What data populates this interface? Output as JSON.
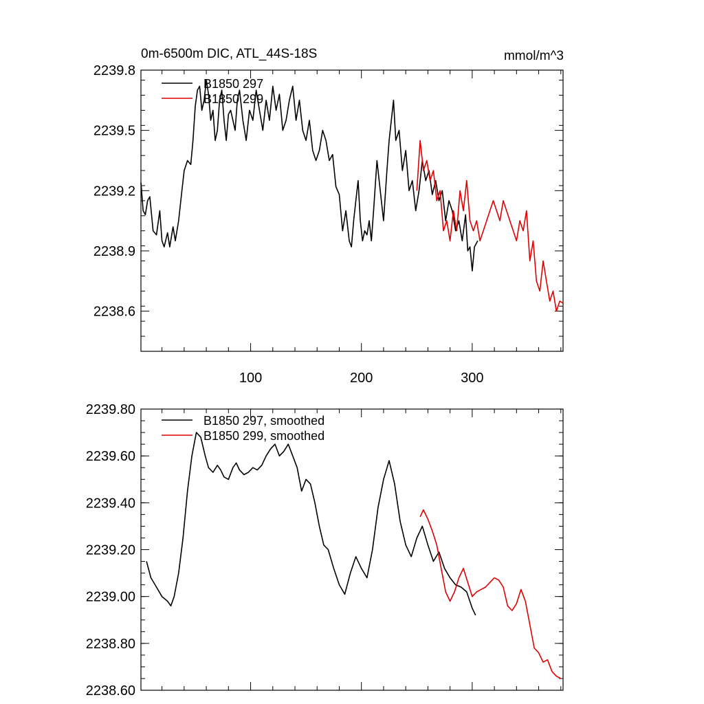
{
  "chart_data": [
    {
      "type": "line",
      "title": "0m-6500m DIC, ATL_44S-18S",
      "units": "mmol/m^3",
      "xlabel": "",
      "ylabel": "",
      "xlim": [
        1,
        382
      ],
      "ylim": [
        2238.4,
        2239.8
      ],
      "xticks": [
        100,
        200,
        300
      ],
      "xtick_labels": [
        "100",
        "200",
        "300"
      ],
      "yticks": [
        2238.6,
        2238.9,
        2239.2,
        2239.5,
        2239.8
      ],
      "ytick_labels": [
        "2238.6",
        "2238.9",
        "2239.2",
        "2239.5",
        "2239.8"
      ],
      "legend": "top-left",
      "grid": false,
      "series": [
        {
          "name": "B1850 297",
          "color": "#000000",
          "x": [
            1,
            3,
            5,
            7,
            9,
            12,
            15,
            18,
            20,
            22,
            25,
            27,
            30,
            32,
            35,
            38,
            40,
            43,
            46,
            48,
            50,
            52,
            54,
            56,
            58,
            60,
            62,
            64,
            66,
            68,
            70,
            72,
            74,
            76,
            78,
            80,
            82,
            84,
            86,
            88,
            90,
            93,
            96,
            99,
            102,
            105,
            108,
            111,
            114,
            117,
            120,
            123,
            126,
            129,
            132,
            135,
            138,
            141,
            144,
            147,
            150,
            153,
            156,
            159,
            162,
            165,
            168,
            171,
            174,
            177,
            180,
            183,
            186,
            189,
            191,
            193,
            195,
            197,
            199,
            201,
            203,
            205,
            207,
            209,
            211,
            214,
            217,
            220,
            223,
            225,
            227,
            229,
            231,
            234,
            237,
            240,
            243,
            246,
            249,
            252,
            255,
            258,
            261,
            264,
            267,
            270,
            273,
            276,
            279,
            282,
            285,
            288,
            291,
            294,
            296,
            298,
            300,
            302,
            305
          ],
          "y": [
            2239.24,
            2239.1,
            2239.08,
            2239.15,
            2239.17,
            2239.0,
            2238.98,
            2239.1,
            2238.95,
            2238.92,
            2238.99,
            2238.92,
            2239.02,
            2238.95,
            2239.05,
            2239.2,
            2239.3,
            2239.35,
            2239.33,
            2239.45,
            2239.62,
            2239.7,
            2239.72,
            2239.6,
            2239.65,
            2239.75,
            2239.68,
            2239.55,
            2239.6,
            2239.45,
            2239.5,
            2239.65,
            2239.7,
            2239.55,
            2239.45,
            2239.58,
            2239.6,
            2239.55,
            2239.5,
            2239.65,
            2239.7,
            2239.55,
            2239.45,
            2239.6,
            2239.55,
            2239.7,
            2239.6,
            2239.5,
            2239.65,
            2239.55,
            2239.72,
            2239.6,
            2239.68,
            2239.5,
            2239.55,
            2239.65,
            2239.72,
            2239.55,
            2239.65,
            2239.5,
            2239.45,
            2239.55,
            2239.4,
            2239.35,
            2239.4,
            2239.5,
            2239.45,
            2239.35,
            2239.38,
            2239.22,
            2239.18,
            2239.0,
            2239.1,
            2238.95,
            2238.92,
            2239.05,
            2239.15,
            2239.25,
            2239.05,
            2238.95,
            2239.0,
            2238.98,
            2239.05,
            2238.95,
            2239.1,
            2239.35,
            2239.2,
            2239.05,
            2239.3,
            2239.45,
            2239.55,
            2239.65,
            2239.45,
            2239.5,
            2239.3,
            2239.4,
            2239.2,
            2239.25,
            2239.1,
            2239.2,
            2239.35,
            2239.25,
            2239.3,
            2239.18,
            2239.25,
            2239.15,
            2239.2,
            2239.05,
            2239.15,
            2239.1,
            2239.0,
            2239.05,
            2238.95,
            2239.08,
            2238.9,
            2238.92,
            2238.8,
            2238.92,
            2238.95
          ]
        },
        {
          "name": "B1850 299",
          "color": "#e00000",
          "x": [
            250,
            253,
            256,
            259,
            262,
            265,
            268,
            271,
            274,
            277,
            280,
            283,
            286,
            289,
            292,
            295,
            298,
            301,
            304,
            307,
            310,
            313,
            316,
            319,
            322,
            325,
            328,
            331,
            334,
            337,
            340,
            343,
            346,
            349,
            352,
            355,
            358,
            361,
            364,
            367,
            370,
            373,
            376,
            379,
            382
          ],
          "y": [
            2239.2,
            2239.45,
            2239.3,
            2239.35,
            2239.25,
            2239.3,
            2239.15,
            2239.2,
            2239.0,
            2239.05,
            2238.95,
            2239.1,
            2239.0,
            2239.2,
            2239.1,
            2239.25,
            2239.05,
            2239.0,
            2239.05,
            2238.95,
            2239.0,
            2239.05,
            2239.1,
            2239.15,
            2239.1,
            2239.05,
            2239.15,
            2239.1,
            2239.05,
            2239.0,
            2238.95,
            2239.05,
            2239.0,
            2239.1,
            2238.85,
            2238.95,
            2238.75,
            2238.7,
            2238.85,
            2238.75,
            2238.65,
            2238.7,
            2238.6,
            2238.65,
            2238.64
          ]
        }
      ]
    },
    {
      "type": "line",
      "title": "",
      "xlabel": "",
      "ylabel": "",
      "xlim": [
        1,
        382
      ],
      "ylim": [
        2238.6,
        2239.8
      ],
      "xticks": [
        100,
        200,
        300
      ],
      "yticks": [
        2238.6,
        2238.8,
        2239.0,
        2239.2,
        2239.4,
        2239.6,
        2239.8
      ],
      "ytick_labels": [
        "2238.60",
        "2238.80",
        "2239.00",
        "2239.20",
        "2239.40",
        "2239.60",
        "2239.80"
      ],
      "legend": "top-left",
      "grid": false,
      "series": [
        {
          "name": "B1850 297, smoothed",
          "color": "#000000",
          "x": [
            6,
            10,
            15,
            20,
            25,
            28,
            31,
            35,
            39,
            43,
            47,
            51,
            55,
            59,
            62,
            66,
            70,
            73,
            76,
            80,
            84,
            87,
            90,
            94,
            98,
            102,
            106,
            110,
            114,
            118,
            122,
            126,
            130,
            134,
            138,
            142,
            146,
            150,
            154,
            158,
            162,
            166,
            170,
            175,
            180,
            185,
            190,
            195,
            200,
            205,
            210,
            215,
            220,
            225,
            230,
            235,
            240,
            245,
            250,
            255,
            260,
            265,
            270,
            275,
            280,
            285,
            290,
            295,
            300,
            303
          ],
          "y": [
            2239.15,
            2239.08,
            2239.04,
            2239.0,
            2238.98,
            2238.96,
            2239.0,
            2239.1,
            2239.25,
            2239.45,
            2239.6,
            2239.7,
            2239.68,
            2239.6,
            2239.55,
            2239.53,
            2239.56,
            2239.54,
            2239.51,
            2239.5,
            2239.55,
            2239.57,
            2239.54,
            2239.52,
            2239.53,
            2239.55,
            2239.54,
            2239.56,
            2239.6,
            2239.63,
            2239.65,
            2239.6,
            2239.62,
            2239.65,
            2239.6,
            2239.55,
            2239.45,
            2239.5,
            2239.48,
            2239.4,
            2239.3,
            2239.22,
            2239.2,
            2239.12,
            2239.05,
            2239.01,
            2239.1,
            2239.17,
            2239.12,
            2239.08,
            2239.2,
            2239.38,
            2239.5,
            2239.58,
            2239.48,
            2239.32,
            2239.22,
            2239.17,
            2239.25,
            2239.3,
            2239.22,
            2239.15,
            2239.19,
            2239.12,
            2239.08,
            2239.05,
            2239.04,
            2239.02,
            2238.95,
            2238.92
          ]
        },
        {
          "name": "B1850 299, smoothed",
          "color": "#e00000",
          "x": [
            253,
            256,
            260,
            264,
            268,
            272,
            276,
            280,
            284,
            288,
            292,
            296,
            300,
            304,
            308,
            312,
            316,
            320,
            324,
            328,
            332,
            336,
            340,
            344,
            348,
            352,
            356,
            360,
            364,
            368,
            372,
            376,
            380
          ],
          "y": [
            2239.34,
            2239.37,
            2239.33,
            2239.28,
            2239.22,
            2239.12,
            2239.02,
            2238.98,
            2239.02,
            2239.08,
            2239.12,
            2239.06,
            2239.0,
            2239.02,
            2239.03,
            2239.04,
            2239.06,
            2239.08,
            2239.07,
            2239.04,
            2238.96,
            2238.94,
            2238.97,
            2239.03,
            2238.98,
            2238.88,
            2238.78,
            2238.76,
            2238.72,
            2238.73,
            2238.68,
            2238.66,
            2238.65
          ]
        }
      ]
    }
  ]
}
